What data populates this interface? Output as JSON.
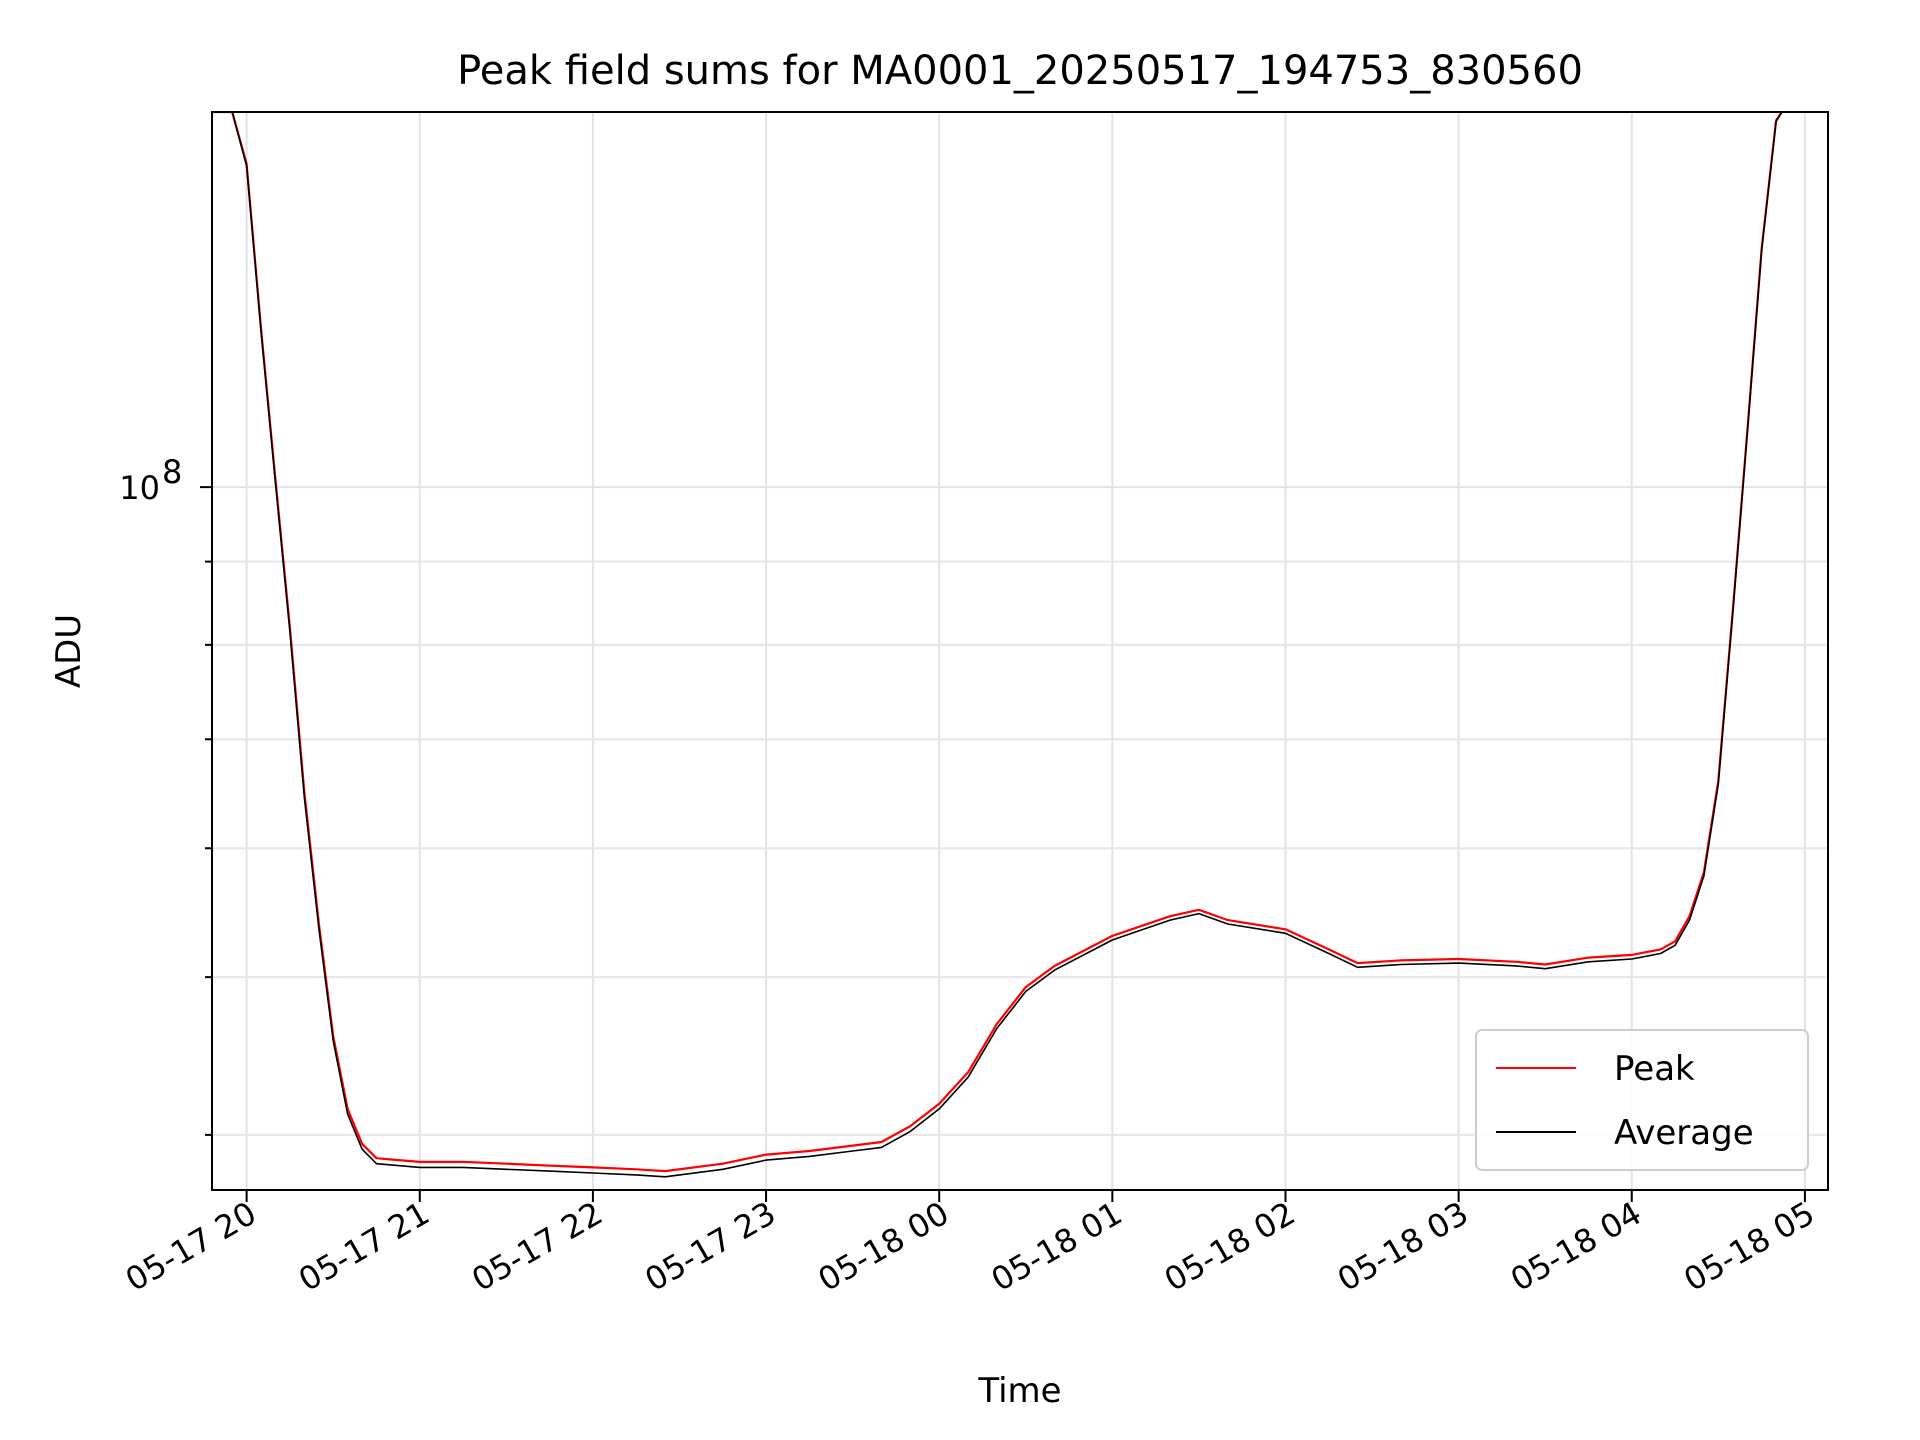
{
  "chart_data": {
    "type": "line",
    "title": "Peak field sums for MA0001_20250517_194753_830560",
    "xlabel": "Time",
    "ylabel": "ADU",
    "y_scale": "log",
    "grid": true,
    "grid_minor": true,
    "legend_position": "bottom-right",
    "xlim": [
      "05-17 19:48",
      "05-18 05:08"
    ],
    "ylim": [
      37000000,
      170000000
    ],
    "x_ticks": [
      "05-17 20",
      "05-17 21",
      "05-17 22",
      "05-17 23",
      "05-18 00",
      "05-18 01",
      "05-18 02",
      "05-18 03",
      "05-18 04",
      "05-18 05"
    ],
    "y_major_ticks": [
      {
        "value": 100000000,
        "base": "10",
        "exp": "8"
      }
    ],
    "y_minor_ticks": [
      40000000,
      50000000,
      60000000,
      70000000,
      80000000,
      90000000,
      200000000
    ],
    "x": [
      "05-17 19:48",
      "05-17 19:55",
      "05-17 20:00",
      "05-17 20:05",
      "05-17 20:10",
      "05-17 20:15",
      "05-17 20:20",
      "05-17 20:25",
      "05-17 20:30",
      "05-17 20:35",
      "05-17 20:40",
      "05-17 20:45",
      "05-17 21:00",
      "05-17 21:15",
      "05-17 21:30",
      "05-17 21:45",
      "05-17 22:00",
      "05-17 22:15",
      "05-17 22:25",
      "05-17 22:45",
      "05-17 23:00",
      "05-17 23:15",
      "05-17 23:30",
      "05-17 23:40",
      "05-17 23:50",
      "05-18 00:00",
      "05-18 00:10",
      "05-18 00:20",
      "05-18 00:30",
      "05-18 00:40",
      "05-18 01:00",
      "05-18 01:20",
      "05-18 01:30",
      "05-18 01:40",
      "05-18 02:00",
      "05-18 02:15",
      "05-18 02:25",
      "05-18 02:40",
      "05-18 03:00",
      "05-18 03:20",
      "05-18 03:30",
      "05-18 03:45",
      "05-18 04:00",
      "05-18 04:10",
      "05-18 04:15",
      "05-18 04:20",
      "05-18 04:25",
      "05-18 04:30",
      "05-18 04:35",
      "05-18 04:40",
      "05-18 04:45",
      "05-18 04:50",
      "05-18 04:52"
    ],
    "series": [
      {
        "name": "Peak",
        "color": "#ff0000",
        "values": [
          170000000,
          170000000,
          158000000,
          125000000,
          101000000,
          82000000,
          65000000,
          54000000,
          46000000,
          41500000,
          39500000,
          38700000,
          38500000,
          38500000,
          38400000,
          38300000,
          38200000,
          38100000,
          38000000,
          38400000,
          38900000,
          39100000,
          39400000,
          39600000,
          40500000,
          41800000,
          43700000,
          46800000,
          49300000,
          50800000,
          53000000,
          54500000,
          55000000,
          54200000,
          53500000,
          52000000,
          51000000,
          51200000,
          51300000,
          51100000,
          50900000,
          51400000,
          51600000,
          52000000,
          52600000,
          54500000,
          58000000,
          66000000,
          84000000,
          108000000,
          140000000,
          168000000,
          170000000
        ]
      },
      {
        "name": "Average",
        "color": "#000000",
        "values": [
          170000000,
          170000000,
          157500000,
          124500000,
          100500000,
          81500000,
          64500000,
          53600000,
          45700000,
          41200000,
          39200000,
          38400000,
          38200000,
          38200000,
          38100000,
          38000000,
          37900000,
          37800000,
          37700000,
          38100000,
          38600000,
          38800000,
          39100000,
          39300000,
          40200000,
          41500000,
          43400000,
          46500000,
          49000000,
          50500000,
          52700000,
          54200000,
          54700000,
          53900000,
          53200000,
          51700000,
          50700000,
          50900000,
          51000000,
          50800000,
          50600000,
          51100000,
          51300000,
          51700000,
          52300000,
          54200000,
          57700000,
          65700000,
          83700000,
          107700000,
          139700000,
          167700000,
          170000000
        ]
      }
    ]
  }
}
